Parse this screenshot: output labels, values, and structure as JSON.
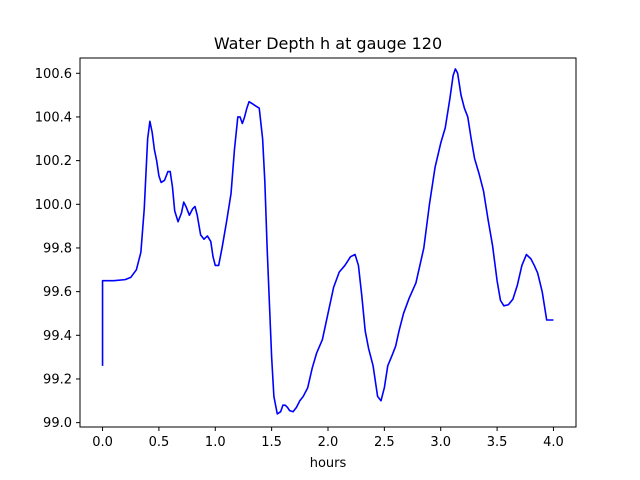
{
  "chart_data": {
    "type": "line",
    "title": "Water Depth h at gauge 120",
    "xlabel": "hours",
    "ylabel": "",
    "xlim": [
      -0.2,
      4.2
    ],
    "ylim": [
      98.98,
      100.67
    ],
    "xticks": [
      0.0,
      0.5,
      1.0,
      1.5,
      2.0,
      2.5,
      3.0,
      3.5,
      4.0
    ],
    "xtick_labels": [
      "0.0",
      "0.5",
      "1.0",
      "1.5",
      "2.0",
      "2.5",
      "3.0",
      "3.5",
      "4.0"
    ],
    "yticks": [
      99.0,
      99.2,
      99.4,
      99.6,
      99.8,
      100.0,
      100.2,
      100.4,
      100.6
    ],
    "ytick_labels": [
      "99.0",
      "99.2",
      "99.4",
      "99.6",
      "99.8",
      "100.0",
      "100.2",
      "100.4",
      "100.6"
    ],
    "grid": false,
    "series": [
      {
        "color": "#0000ff",
        "x": [
          0.0,
          0.0,
          0.01,
          0.1,
          0.2,
          0.25,
          0.3,
          0.34,
          0.37,
          0.4,
          0.42,
          0.44,
          0.46,
          0.48,
          0.5,
          0.52,
          0.55,
          0.58,
          0.6,
          0.62,
          0.64,
          0.67,
          0.7,
          0.72,
          0.74,
          0.77,
          0.8,
          0.82,
          0.84,
          0.87,
          0.9,
          0.93,
          0.96,
          0.98,
          1.0,
          1.03,
          1.06,
          1.1,
          1.14,
          1.17,
          1.2,
          1.22,
          1.24,
          1.26,
          1.28,
          1.3,
          1.33,
          1.36,
          1.39,
          1.42,
          1.44,
          1.46,
          1.48,
          1.5,
          1.52,
          1.55,
          1.58,
          1.6,
          1.62,
          1.64,
          1.66,
          1.69,
          1.72,
          1.75,
          1.78,
          1.82,
          1.86,
          1.9,
          1.95,
          2.0,
          2.05,
          2.1,
          2.15,
          2.2,
          2.24,
          2.27,
          2.3,
          2.33,
          2.36,
          2.4,
          2.44,
          2.47,
          2.5,
          2.53,
          2.57,
          2.6,
          2.63,
          2.67,
          2.72,
          2.78,
          2.85,
          2.9,
          2.95,
          3.0,
          3.04,
          3.08,
          3.11,
          3.13,
          3.15,
          3.18,
          3.21,
          3.24,
          3.27,
          3.3,
          3.34,
          3.38,
          3.42,
          3.46,
          3.5,
          3.53,
          3.56,
          3.6,
          3.64,
          3.68,
          3.72,
          3.76,
          3.8,
          3.83,
          3.86,
          3.9,
          3.94,
          3.97,
          4.0
        ],
        "y": [
          99.26,
          99.65,
          99.65,
          99.65,
          99.655,
          99.665,
          99.7,
          99.78,
          99.98,
          100.3,
          100.38,
          100.33,
          100.25,
          100.2,
          100.13,
          100.1,
          100.11,
          100.15,
          100.15,
          100.08,
          99.97,
          99.92,
          99.96,
          100.01,
          99.99,
          99.95,
          99.98,
          99.99,
          99.95,
          99.86,
          99.84,
          99.855,
          99.83,
          99.76,
          99.72,
          99.72,
          99.8,
          99.92,
          100.05,
          100.25,
          100.4,
          100.4,
          100.37,
          100.4,
          100.44,
          100.47,
          100.46,
          100.45,
          100.44,
          100.3,
          100.1,
          99.8,
          99.55,
          99.3,
          99.12,
          99.04,
          99.05,
          99.08,
          99.08,
          99.07,
          99.055,
          99.05,
          99.07,
          99.1,
          99.12,
          99.16,
          99.25,
          99.32,
          99.38,
          99.5,
          99.62,
          99.69,
          99.72,
          99.76,
          99.77,
          99.72,
          99.58,
          99.42,
          99.34,
          99.26,
          99.12,
          99.1,
          99.16,
          99.26,
          99.31,
          99.35,
          99.42,
          99.5,
          99.57,
          99.64,
          99.8,
          100.0,
          100.17,
          100.28,
          100.35,
          100.48,
          100.59,
          100.62,
          100.6,
          100.5,
          100.44,
          100.4,
          100.3,
          100.21,
          100.14,
          100.06,
          99.93,
          99.81,
          99.65,
          99.56,
          99.535,
          99.54,
          99.565,
          99.63,
          99.72,
          99.77,
          99.75,
          99.72,
          99.685,
          99.6,
          99.47,
          99.47,
          99.47
        ]
      }
    ]
  }
}
